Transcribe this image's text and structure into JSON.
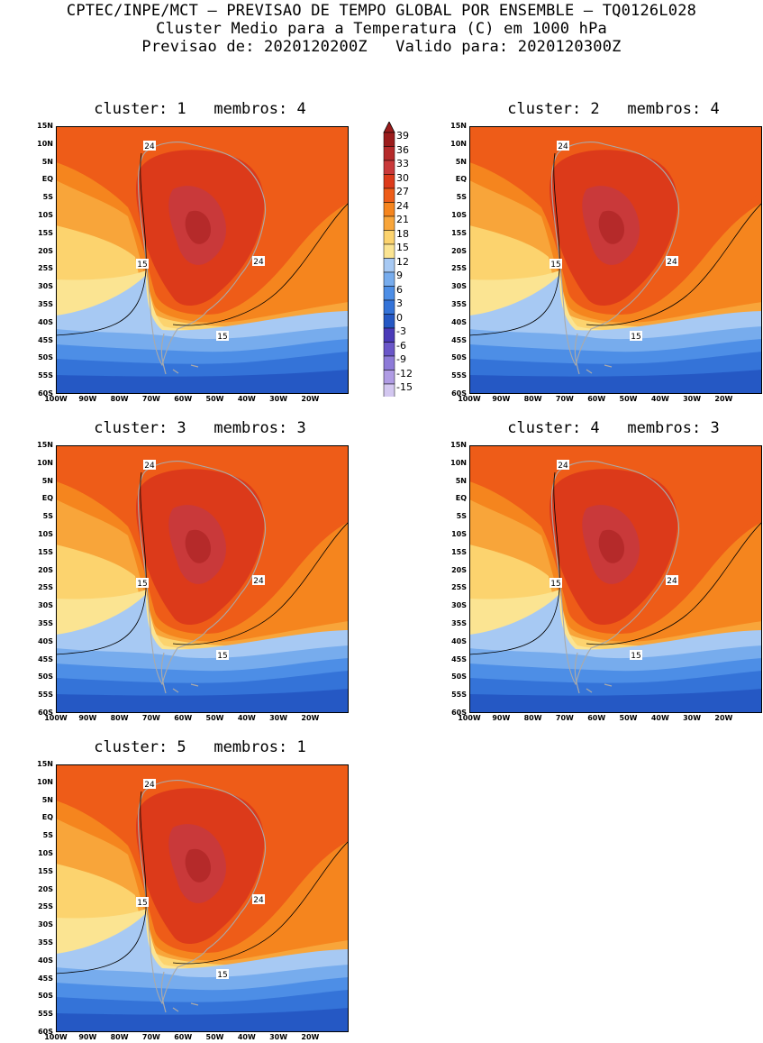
{
  "header": {
    "line1": "CPTEC/INPE/MCT — PREVISAO DE TEMPO GLOBAL POR ENSEMBLE — TQ0126L028",
    "line2": "Cluster Medio para a Temperatura (C) em 1000 hPa",
    "line3": "Previsao de: 2020120200Z   Valido para: 2020120300Z"
  },
  "lat_labels": [
    "15N",
    "10N",
    "5N",
    "EQ",
    "5S",
    "10S",
    "15S",
    "20S",
    "25S",
    "30S",
    "35S",
    "40S",
    "45S",
    "50S",
    "55S",
    "60S"
  ],
  "lon_labels": [
    "100W",
    "90W",
    "80W",
    "70W",
    "60W",
    "50W",
    "40W",
    "30W",
    "20W"
  ],
  "panels": [
    {
      "title": "cluster: 1   membros: 4",
      "contours": [
        "24",
        "15",
        "24",
        "15"
      ]
    },
    {
      "title": "cluster: 2   membros: 4",
      "contours": [
        "24",
        "15",
        "24",
        "15"
      ]
    },
    {
      "title": "cluster: 3   membros: 3",
      "contours": [
        "24",
        "15",
        "24",
        "15"
      ]
    },
    {
      "title": "cluster: 4   membros: 3",
      "contours": [
        "24",
        "15",
        "24",
        "15"
      ]
    },
    {
      "title": "cluster: 5   membros: 1",
      "contours": [
        "24",
        "15",
        "24",
        "15"
      ]
    }
  ],
  "colorbar": {
    "labels": [
      "39",
      "36",
      "33",
      "30",
      "27",
      "24",
      "21",
      "18",
      "15",
      "12",
      "9",
      "6",
      "3",
      "0",
      "-3",
      "-6",
      "-9",
      "-12",
      "-15"
    ],
    "colors": [
      "#9b1c1c",
      "#b52a2a",
      "#c9393a",
      "#dc3a1a",
      "#ee5c18",
      "#f5851e",
      "#f8a53a",
      "#fcd36e",
      "#fbe492",
      "#a7c9f3",
      "#77aced",
      "#4d8ee6",
      "#3473d8",
      "#2558c4",
      "#4a3ab8",
      "#6a56c8",
      "#8d7ad8",
      "#b09ce4",
      "#d3c7f0"
    ]
  }
}
